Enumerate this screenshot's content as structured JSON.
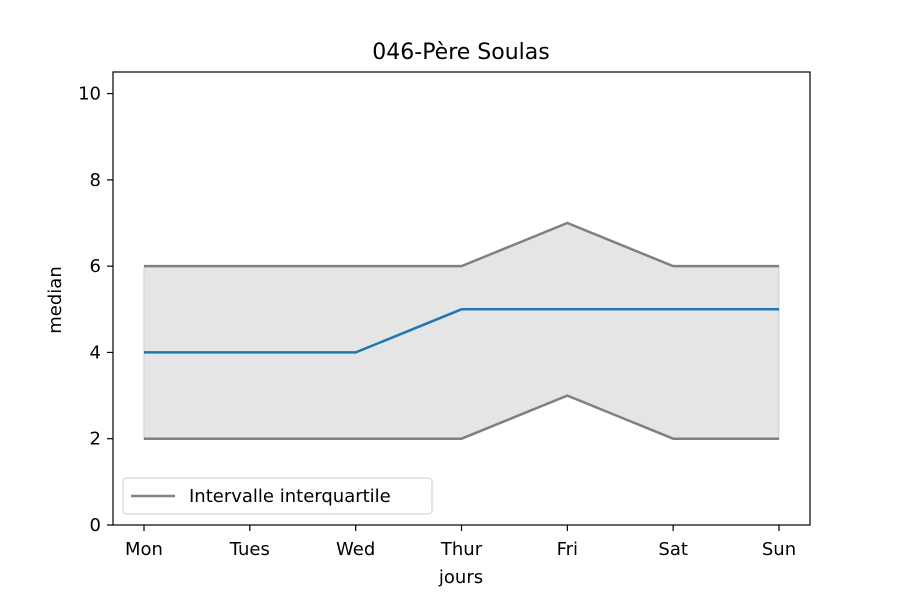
{
  "chart_data": {
    "type": "line",
    "title": "046-Père Soulas",
    "xlabel": "jours",
    "ylabel": "median",
    "categories": [
      "Mon",
      "Tues",
      "Wed",
      "Thur",
      "Fri",
      "Sat",
      "Sun"
    ],
    "ylim": [
      0,
      10.5
    ],
    "yticks": [
      0,
      2,
      4,
      6,
      8,
      10
    ],
    "series": [
      {
        "role": "median",
        "values": [
          4,
          4,
          4,
          5,
          5,
          5,
          5
        ],
        "color": "#1f77b4"
      },
      {
        "role": "q1",
        "values": [
          2,
          2,
          2,
          2,
          3,
          2,
          2
        ],
        "color": "#808080"
      },
      {
        "role": "q3",
        "values": [
          6,
          6,
          6,
          6,
          7,
          6,
          6
        ],
        "color": "#808080"
      }
    ],
    "band_color": "#e5e5e5",
    "legend": {
      "location": "lower-left",
      "entries": [
        {
          "label": "Intervalle interquartile",
          "color": "#808080"
        }
      ]
    },
    "grid": false
  }
}
